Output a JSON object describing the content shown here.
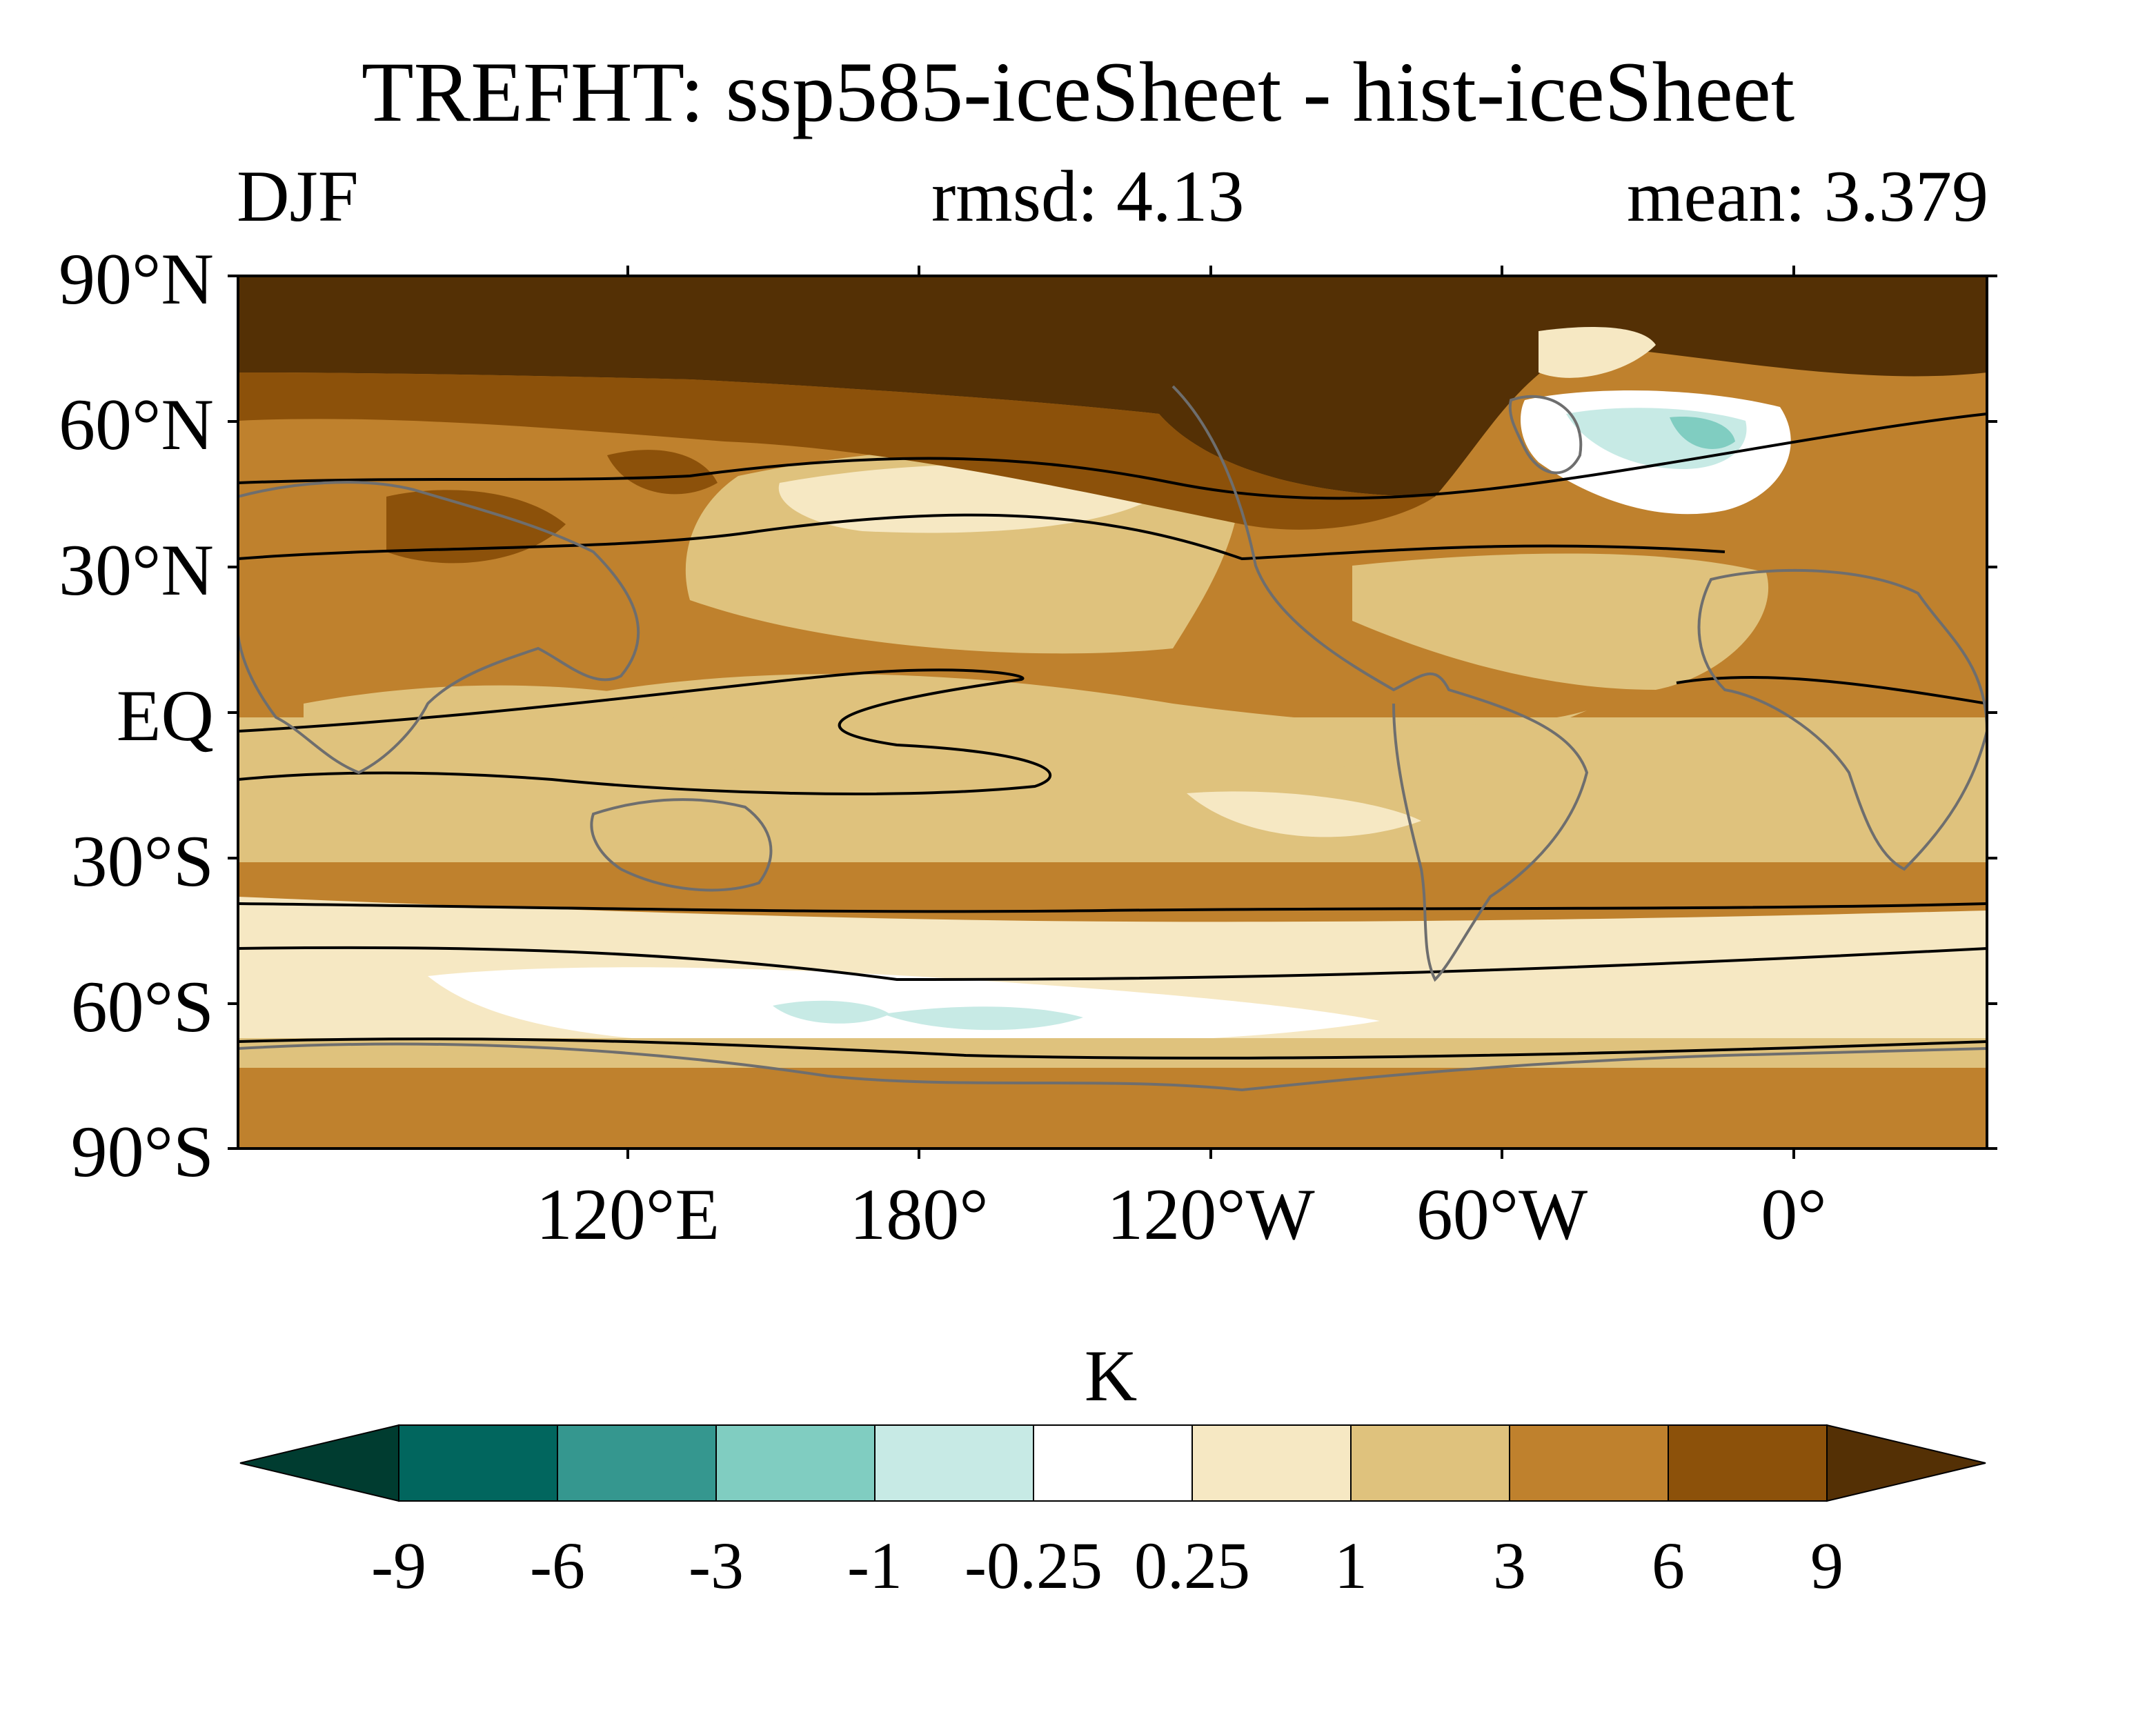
{
  "title": "TREFHT: ssp585-iceSheet - hist-iceSheet",
  "season": "DJF",
  "rmsd_text": "rmsd: 4.13",
  "mean_text": "mean: 3.379",
  "lat_labels": [
    "90°N",
    "60°N",
    "30°N",
    "EQ",
    "30°S",
    "60°S",
    "90°S"
  ],
  "lon_labels": [
    "120°E",
    "180°",
    "120°W",
    "60°W",
    "0°"
  ],
  "colorbar": {
    "unit": "K",
    "levels": [
      "-9",
      "-6",
      "-3",
      "-1",
      "-0.25",
      "0.25",
      "1",
      "3",
      "6",
      "9"
    ],
    "colors": [
      "#003c30",
      "#01665e",
      "#35978f",
      "#80cdc1",
      "#c7eae5",
      "#ffffff",
      "#f6e8c3",
      "#dfc27d",
      "#bf812d",
      "#8c510a",
      "#543005"
    ]
  },
  "map_colors": {
    "deep_brown": "#543005",
    "brown": "#8c510a",
    "mid_brown": "#bf812d",
    "tan": "#dfc27d",
    "cream": "#f6e8c3",
    "white": "#ffffff",
    "pale_teal": "#c7eae5",
    "teal": "#80cdc1",
    "coast": "#6e6e6e",
    "contour": "#000000"
  }
}
